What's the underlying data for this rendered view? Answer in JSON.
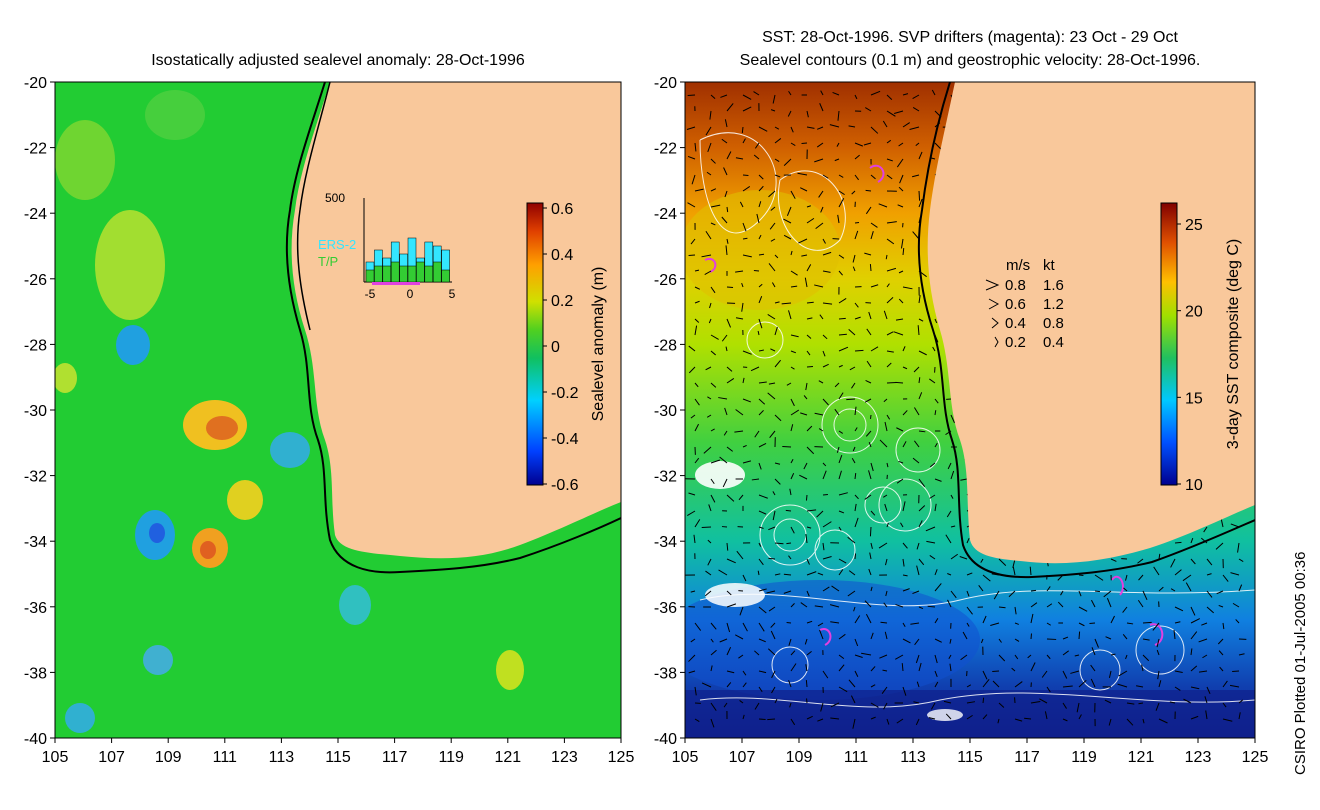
{
  "left_panel": {
    "title": "Isostatically adjusted sealevel anomaly: 28-Oct-1996",
    "y_ticks": [
      "-20",
      "-22",
      "-24",
      "-26",
      "-28",
      "-30",
      "-32",
      "-34",
      "-36",
      "-38",
      "-40"
    ],
    "x_ticks": [
      "105",
      "107",
      "109",
      "111",
      "113",
      "115",
      "117",
      "119",
      "121",
      "123",
      "125"
    ],
    "colorbar": {
      "label": "Sealevel anomaly (m)",
      "ticks": [
        "0.6",
        "0.4",
        "0.2",
        "0",
        "-0.2",
        "-0.4",
        "-0.6"
      ]
    },
    "inset": {
      "y_max_label": "500",
      "x_ticks": [
        "-5",
        "0",
        "5"
      ],
      "legend_ers": "ERS-2",
      "legend_tp": "T/P",
      "ers_color": "#33e6ff",
      "tp_color": "#33cc33"
    }
  },
  "right_panel": {
    "title_line1": "SST: 28-Oct-1996. SVP drifters (magenta): 23 Oct - 29 Oct",
    "title_line2": "Sealevel contours (0.1 m) and geostrophic velocity: 28-Oct-1996.",
    "y_ticks": [
      "-20",
      "-22",
      "-24",
      "-26",
      "-28",
      "-30",
      "-32",
      "-34",
      "-36",
      "-38",
      "-40"
    ],
    "x_ticks": [
      "105",
      "107",
      "109",
      "111",
      "113",
      "115",
      "117",
      "119",
      "121",
      "123",
      "125"
    ],
    "colorbar": {
      "label": "3-day SST composite (deg C)",
      "ticks": [
        "25",
        "20",
        "15",
        "10"
      ]
    },
    "velocity_legend": {
      "header_ms": "m/s",
      "header_kt": "kt",
      "rows": [
        {
          "ms": "0.8",
          "kt": "1.6"
        },
        {
          "ms": "0.6",
          "kt": "1.2"
        },
        {
          "ms": "0.4",
          "kt": "0.8"
        },
        {
          "ms": "0.2",
          "kt": "0.4"
        }
      ]
    }
  },
  "footer_note": "CSIRO Plotted 01-Jul-2005 00:36",
  "colors": {
    "land": "#f9c89b",
    "ocean_green": "#22cc33",
    "drifter_magenta": "#e040e0"
  }
}
